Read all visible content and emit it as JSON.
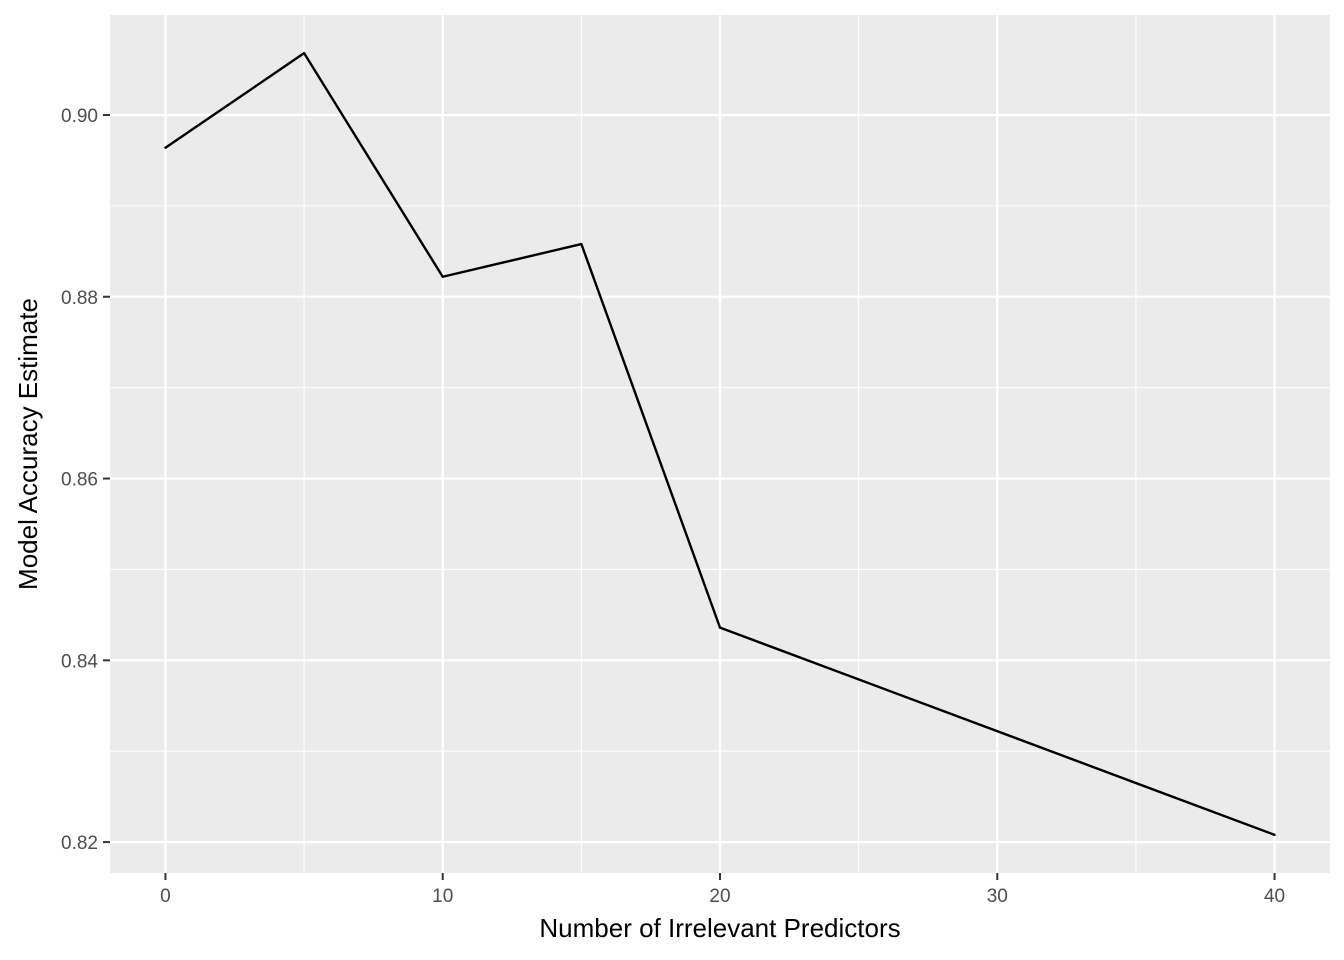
{
  "chart_data": {
    "type": "line",
    "title": "",
    "xlabel": "Number of Irrelevant Predictors",
    "ylabel": "Model Accuracy Estimate",
    "x": [
      0,
      5,
      10,
      15,
      20,
      40
    ],
    "series": [
      {
        "values": [
          0.8964,
          0.9068,
          0.8822,
          0.8858,
          0.8436,
          0.8208
        ]
      }
    ],
    "xlim": [
      -2,
      42
    ],
    "ylim": [
      0.8166,
      0.911
    ],
    "x_major_ticks": [
      0,
      10,
      20,
      30,
      40
    ],
    "x_minor_ticks": [
      5,
      15,
      25,
      35
    ],
    "y_major_ticks": [
      0.82,
      0.84,
      0.86,
      0.88,
      0.9
    ],
    "y_minor_ticks": [
      0.83,
      0.85,
      0.87,
      0.89
    ],
    "x_tick_labels": [
      "0",
      "10",
      "20",
      "30",
      "40"
    ],
    "y_tick_labels": [
      "0.82",
      "0.84",
      "0.86",
      "0.88",
      "0.90"
    ],
    "grid": true,
    "legend": "none",
    "colors": {
      "panel_background": "#EBEBEB",
      "grid": "#FFFFFF",
      "line": "#000000",
      "tick_mark": "#333333",
      "tick_label": "#4D4D4D"
    }
  }
}
